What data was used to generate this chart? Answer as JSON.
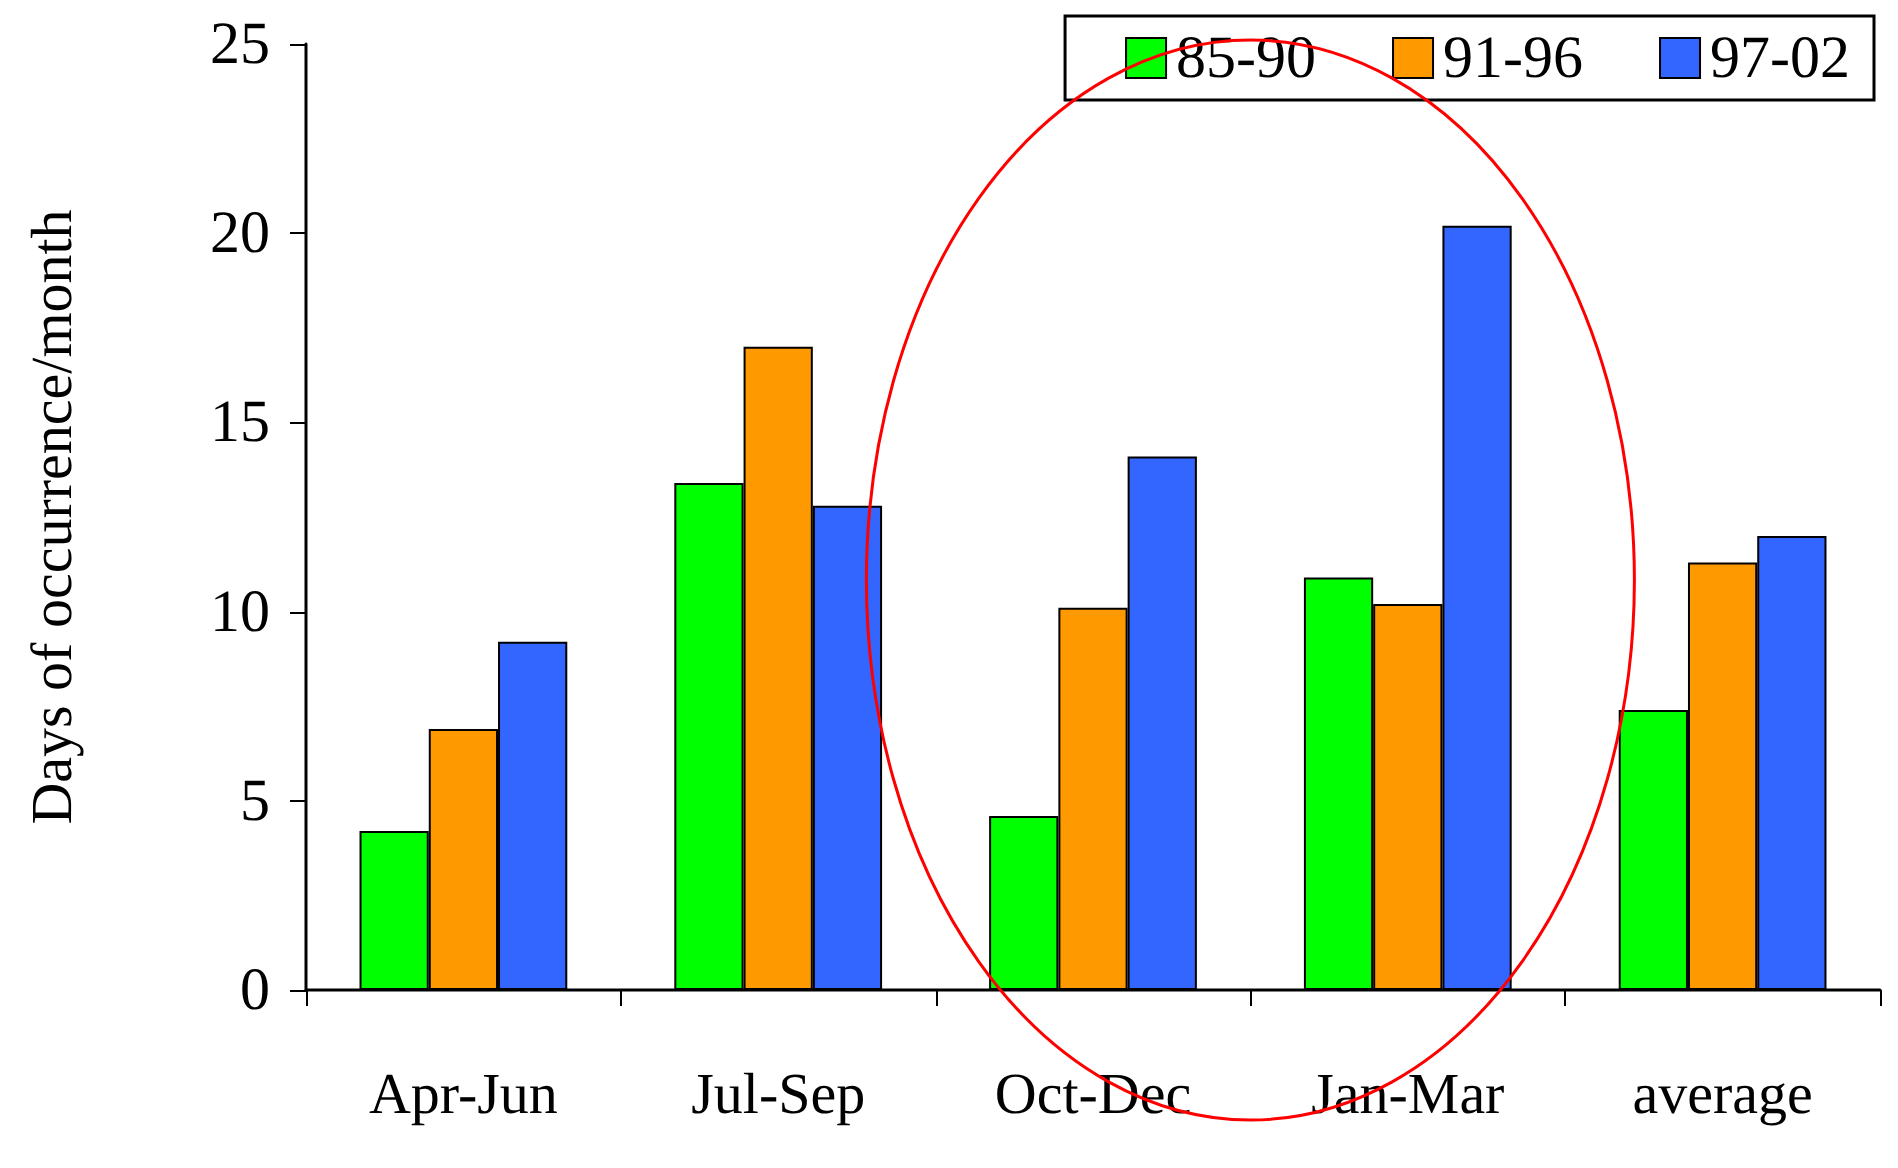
{
  "chart_data": {
    "type": "bar",
    "ylabel": "Days of occurrence/month",
    "categories": [
      "Apr-Jun",
      "Jul-Sep",
      "Oct-Dec",
      "Jan-Mar",
      "average"
    ],
    "series": [
      {
        "name": "85-90",
        "color": "#00ff00",
        "values": [
          4.2,
          13.4,
          4.6,
          10.9,
          7.4
        ]
      },
      {
        "name": "91-96",
        "color": "#ff9900",
        "values": [
          6.9,
          17.0,
          10.1,
          10.2,
          11.3
        ]
      },
      {
        "name": "97-02",
        "color": "#3366ff",
        "values": [
          9.2,
          12.8,
          14.1,
          20.2,
          12.0
        ]
      }
    ],
    "ylim": [
      0,
      25
    ],
    "yticks": [
      0,
      5,
      10,
      15,
      20,
      25
    ],
    "grid": false,
    "legend": "top right"
  }
}
